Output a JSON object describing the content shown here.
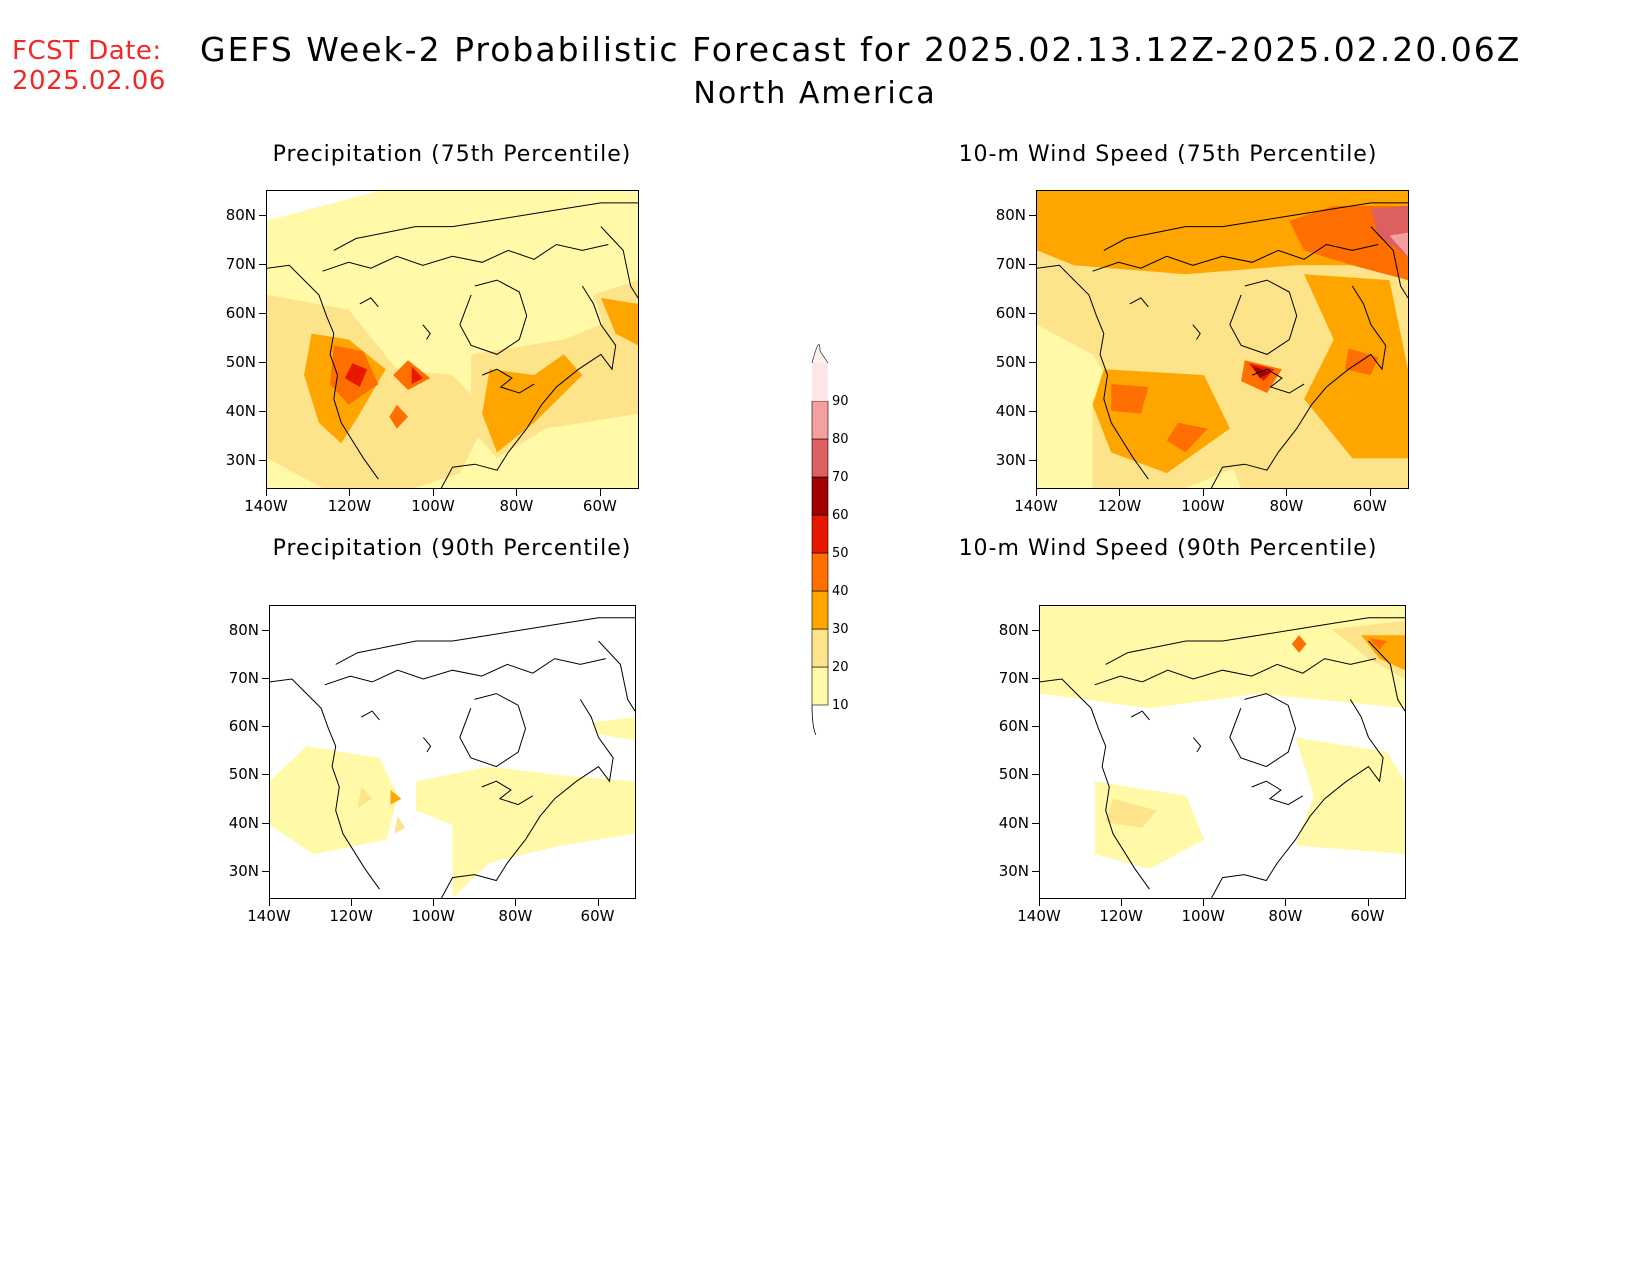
{
  "header": {
    "fcst_label": "FCST Date:",
    "fcst_date": "2025.02.06",
    "title": "GEFS Week-2 Probabilistic Forecast for 2025.02.13.12Z-2025.02.20.06Z",
    "subtitle": "North America"
  },
  "axes": {
    "lat_labels": [
      "80N",
      "70N",
      "60N",
      "50N",
      "40N",
      "30N"
    ],
    "lon_labels": [
      "140W",
      "120W",
      "100W",
      "80W",
      "60W"
    ]
  },
  "colorbar": {
    "levels": [
      "10",
      "20",
      "30",
      "40",
      "50",
      "60",
      "70",
      "80",
      "90"
    ],
    "colors": [
      "#fff9a8",
      "#fde38a",
      "#ffa500",
      "#ff6e00",
      "#e81800",
      "#a00000",
      "#dc6060",
      "#f4a0a0",
      "#ffe6e6"
    ]
  },
  "panels": [
    {
      "id": "precip75",
      "title": "Precipitation (75th Percentile)",
      "field": "precip",
      "percentile": 75
    },
    {
      "id": "wind75",
      "title": "10-m Wind Speed (75th Percentile)",
      "field": "wind",
      "percentile": 75
    },
    {
      "id": "precip90",
      "title": "Precipitation (90th Percentile)",
      "field": "precip",
      "percentile": 90
    },
    {
      "id": "wind90",
      "title": "10-m Wind Speed (90th Percentile)",
      "field": "wind",
      "percentile": 90
    }
  ]
}
